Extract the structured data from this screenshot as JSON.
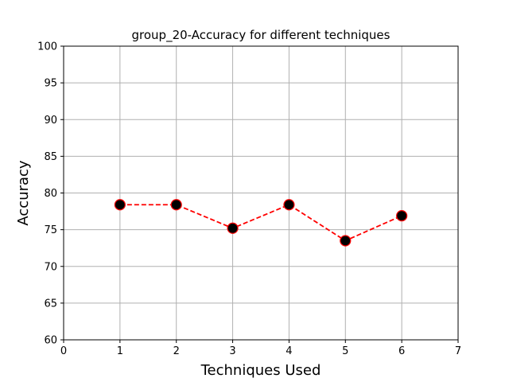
{
  "chart_data": {
    "type": "line",
    "title": "group_20-Accuracy for different techniques",
    "xlabel": "Techniques Used",
    "ylabel": "Accuracy",
    "xlim": [
      0,
      7
    ],
    "ylim": [
      60,
      100
    ],
    "xticks": [
      0,
      1,
      2,
      3,
      4,
      5,
      6,
      7
    ],
    "yticks": [
      60,
      65,
      70,
      75,
      80,
      85,
      90,
      95,
      100
    ],
    "grid": true,
    "series": [
      {
        "x": [
          1,
          2,
          3,
          4,
          5,
          6
        ],
        "y": [
          78.4,
          78.4,
          75.2,
          78.4,
          73.5,
          76.9
        ],
        "line_color": "#ff0000",
        "line_style": "dashed",
        "marker": "circle",
        "marker_face_color": "#000000",
        "marker_edge_color": "#ff0000"
      }
    ]
  }
}
